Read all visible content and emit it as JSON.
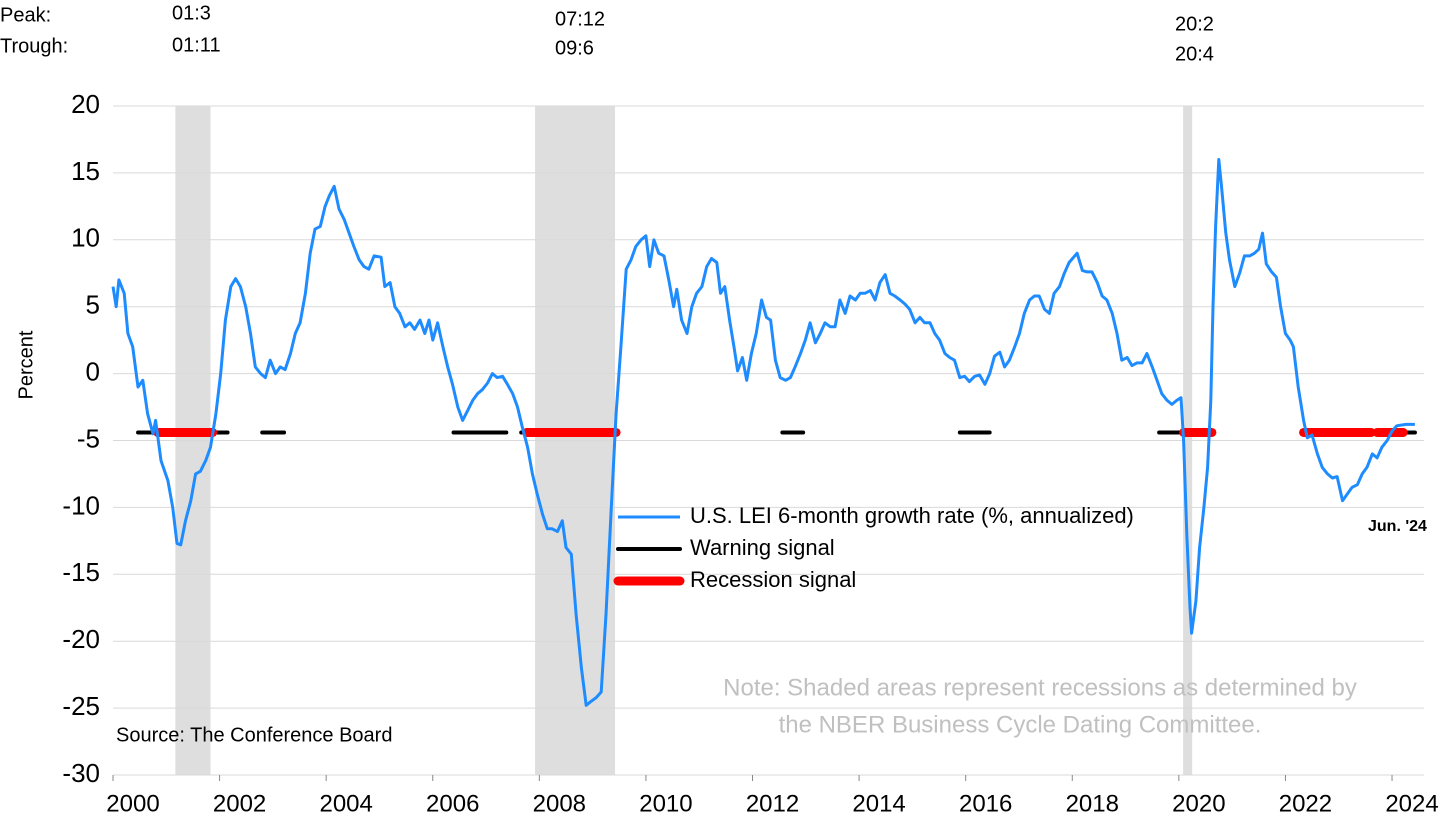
{
  "chart_data": {
    "type": "line",
    "y_label": "Percent",
    "source": "Source: The Conference Board",
    "note": [
      "Note: Shaded areas represent recessions as determined by",
      "the NBER Business Cycle Dating Committee."
    ],
    "end_label": "Jun. '24",
    "peak_label": "Peak:",
    "trough_label": "Trough:",
    "recessions": [
      {
        "peak": "01:3",
        "trough": "01:11",
        "start": 2001.17,
        "end": 2001.83
      },
      {
        "peak": "07:12",
        "trough": "09:6",
        "start": 2007.92,
        "end": 2009.42
      },
      {
        "peak": "20:2",
        "trough": "20:4",
        "start": 2020.08,
        "end": 2020.25
      }
    ],
    "xlim": [
      2000,
      2024.6
    ],
    "xticks": [
      2000,
      2002,
      2004,
      2006,
      2008,
      2010,
      2012,
      2014,
      2016,
      2018,
      2020,
      2022,
      2024
    ],
    "ylim": [
      -30,
      20
    ],
    "yticks": [
      -30,
      -25,
      -20,
      -15,
      -10,
      -5,
      0,
      5,
      10,
      15,
      20
    ],
    "grid": true,
    "x": [
      2000.0,
      2000.06,
      2000.11,
      2000.21,
      2000.28,
      2000.37,
      2000.47,
      2000.56,
      2000.65,
      2000.75,
      2000.8,
      2000.9,
      2001.03,
      2001.12,
      2001.2,
      2001.27,
      2001.36,
      2001.46,
      2001.55,
      2001.64,
      2001.74,
      2001.83,
      2001.93,
      2002.02,
      2002.11,
      2002.21,
      2002.3,
      2002.39,
      2002.49,
      2002.58,
      2002.67,
      2002.77,
      2002.86,
      2002.95,
      2003.05,
      2003.14,
      2003.23,
      2003.33,
      2003.42,
      2003.51,
      2003.61,
      2003.7,
      2003.79,
      2003.89,
      2003.98,
      2004.06,
      2004.15,
      2004.24,
      2004.34,
      2004.43,
      2004.52,
      2004.62,
      2004.71,
      2004.8,
      2004.9,
      2005.03,
      2005.1,
      2005.2,
      2005.29,
      2005.38,
      2005.48,
      2005.57,
      2005.66,
      2005.76,
      2005.85,
      2005.93,
      2006.0,
      2006.09,
      2006.19,
      2006.28,
      2006.37,
      2006.47,
      2006.56,
      2006.65,
      2006.75,
      2006.84,
      2006.93,
      2007.03,
      2007.12,
      2007.21,
      2007.31,
      2007.4,
      2007.5,
      2007.59,
      2007.68,
      2007.78,
      2007.87,
      2007.96,
      2008.06,
      2008.15,
      2008.24,
      2008.34,
      2008.43,
      2008.5,
      2008.6,
      2008.69,
      2008.79,
      2008.88,
      2008.97,
      2009.07,
      2009.16,
      2009.25,
      2009.35,
      2009.44,
      2009.53,
      2009.63,
      2009.72,
      2009.81,
      2009.91,
      2010.0,
      2010.07,
      2010.15,
      2010.24,
      2010.34,
      2010.43,
      2010.52,
      2010.58,
      2010.67,
      2010.77,
      2010.86,
      2010.95,
      2011.05,
      2011.14,
      2011.23,
      2011.33,
      2011.4,
      2011.48,
      2011.57,
      2011.66,
      2011.72,
      2011.81,
      2011.89,
      2011.98,
      2012.07,
      2012.17,
      2012.26,
      2012.34,
      2012.43,
      2012.52,
      2012.62,
      2012.71,
      2012.8,
      2012.9,
      2012.99,
      2013.08,
      2013.18,
      2013.27,
      2013.36,
      2013.46,
      2013.55,
      2013.64,
      2013.74,
      2013.83,
      2013.93,
      2014.02,
      2014.11,
      2014.21,
      2014.3,
      2014.39,
      2014.49,
      2014.58,
      2014.67,
      2014.77,
      2014.86,
      2014.95,
      2015.05,
      2015.14,
      2015.23,
      2015.33,
      2015.42,
      2015.51,
      2015.61,
      2015.7,
      2015.79,
      2015.89,
      2015.98,
      2016.07,
      2016.17,
      2016.26,
      2016.36,
      2016.45,
      2016.54,
      2016.64,
      2016.73,
      2016.82,
      2016.92,
      2017.01,
      2017.1,
      2017.2,
      2017.29,
      2017.38,
      2017.48,
      2017.57,
      2017.66,
      2017.76,
      2017.85,
      2017.94,
      2018.09,
      2018.19,
      2018.28,
      2018.37,
      2018.47,
      2018.56,
      2018.65,
      2018.75,
      2018.84,
      2018.93,
      2019.03,
      2019.12,
      2019.21,
      2019.31,
      2019.4,
      2019.5,
      2019.59,
      2019.68,
      2019.78,
      2019.87,
      2019.96,
      2020.04,
      2020.09,
      2020.15,
      2020.21,
      2020.24,
      2020.32,
      2020.39,
      2020.47,
      2020.54,
      2020.6,
      2020.64,
      2020.69,
      2020.75,
      2020.8,
      2020.88,
      2020.95,
      2021.05,
      2021.14,
      2021.23,
      2021.33,
      2021.42,
      2021.5,
      2021.57,
      2021.64,
      2021.74,
      2021.83,
      2021.91,
      2022.0,
      2022.09,
      2022.15,
      2022.24,
      2022.34,
      2022.41,
      2022.5,
      2022.6,
      2022.69,
      2022.79,
      2022.88,
      2022.97,
      2023.07,
      2023.16,
      2023.25,
      2023.35,
      2023.44,
      2023.53,
      2023.63,
      2023.72,
      2023.81,
      2023.91,
      2024.0,
      2024.09,
      2024.26,
      2024.43
    ],
    "series": [
      {
        "name": "U.S. LEI 6-month growth rate (%, annualized)",
        "color": "#1e8cff",
        "values": [
          6.5,
          5,
          7,
          6,
          3,
          2,
          -1,
          -0.5,
          -3,
          -4.5,
          -3.5,
          -6.5,
          -8,
          -10,
          -12.7,
          -12.8,
          -11,
          -9.5,
          -7.5,
          -7.3,
          -6.5,
          -5.5,
          -3,
          0,
          4,
          6.5,
          7.1,
          6.5,
          5,
          3,
          0.5,
          0,
          -0.3,
          1,
          0,
          0.5,
          0.3,
          1.5,
          3,
          3.8,
          6,
          9,
          10.8,
          11,
          12.5,
          13.3,
          14,
          12.3,
          11.5,
          10.5,
          9.5,
          8.5,
          8,
          7.8,
          8.8,
          8.7,
          6.5,
          6.8,
          5,
          4.5,
          3.5,
          3.8,
          3.3,
          4,
          3,
          4,
          2.5,
          3.8,
          2,
          0.5,
          -0.8,
          -2.5,
          -3.5,
          -2.8,
          -2,
          -1.5,
          -1.2,
          -0.7,
          0,
          -0.3,
          -0.2,
          -0.8,
          -1.5,
          -2.5,
          -4,
          -5.5,
          -7.5,
          -9,
          -10.5,
          -11.6,
          -11.6,
          -11.8,
          -11,
          -13,
          -13.5,
          -18,
          -22,
          -24.8,
          -24.5,
          -24.2,
          -23.8,
          -18,
          -10,
          -3,
          2,
          7.8,
          8.5,
          9.5,
          10,
          10.3,
          8,
          10,
          9,
          8.8,
          7,
          5,
          6.3,
          4,
          3,
          5,
          6,
          6.5,
          8,
          8.6,
          8.3,
          6,
          6.5,
          4,
          1.8,
          0.2,
          1.2,
          -0.5,
          1.5,
          3,
          5.5,
          4.2,
          4,
          1,
          -0.3,
          -0.5,
          -0.3,
          0.5,
          1.5,
          2.5,
          3.8,
          2.3,
          3,
          3.8,
          3.5,
          3.5,
          5.5,
          4.5,
          5.8,
          5.5,
          6,
          6,
          6.2,
          5.5,
          6.8,
          7.4,
          6,
          5.8,
          5.5,
          5.2,
          4.8,
          3.8,
          4.2,
          3.8,
          3.8,
          3,
          2.5,
          1.5,
          1.2,
          1,
          -0.3,
          -0.2,
          -0.6,
          -0.2,
          -0.1,
          -0.8,
          0,
          1.3,
          1.6,
          0.5,
          1,
          2,
          3,
          4.5,
          5.5,
          5.8,
          5.8,
          4.8,
          4.5,
          6,
          6.5,
          7.5,
          8.3,
          9,
          7.7,
          7.6,
          7.6,
          6.8,
          5.8,
          5.5,
          4.5,
          3,
          1,
          1.2,
          0.6,
          0.8,
          0.8,
          1.5,
          0.5,
          -0.5,
          -1.5,
          -2,
          -2.3,
          -2,
          -1.8,
          -5,
          -12,
          -17.5,
          -19.4,
          -17,
          -13,
          -10,
          -7,
          -2,
          5,
          11,
          16,
          14,
          10.5,
          8.5,
          6.5,
          7.5,
          8.8,
          8.8,
          9,
          9.3,
          10.5,
          8.2,
          7.6,
          7.2,
          5,
          3,
          2.5,
          2,
          -1,
          -3.5,
          -4.8,
          -4.6,
          -6,
          -7,
          -7.5,
          -7.8,
          -7.7,
          -9.5,
          -9,
          -8.5,
          -8.3,
          -7.5,
          -7,
          -6,
          -6.3,
          -5.5,
          -5,
          -4.3,
          -3.9,
          -3.8,
          -3.8
        ]
      }
    ],
    "signals": [
      {
        "name": "Warning signal",
        "color": "#000000",
        "value": -4.4,
        "periods": [
          [
            2000.47,
            2002.15
          ],
          [
            2002.8,
            2003.21
          ],
          [
            2006.39,
            2007.38
          ],
          [
            2007.66,
            2009.44
          ],
          [
            2012.56,
            2012.95
          ],
          [
            2015.89,
            2016.45
          ],
          [
            2019.63,
            2020.09
          ],
          [
            2022.34,
            2024.43
          ]
        ]
      },
      {
        "name": "Recession signal",
        "color": "#ff0000",
        "value": -4.4,
        "periods": [
          [
            2000.84,
            2001.87
          ],
          [
            2007.76,
            2009.44
          ],
          [
            2020.09,
            2020.62
          ],
          [
            2022.34,
            2023.61
          ],
          [
            2023.72,
            2024.21
          ]
        ]
      }
    ]
  }
}
